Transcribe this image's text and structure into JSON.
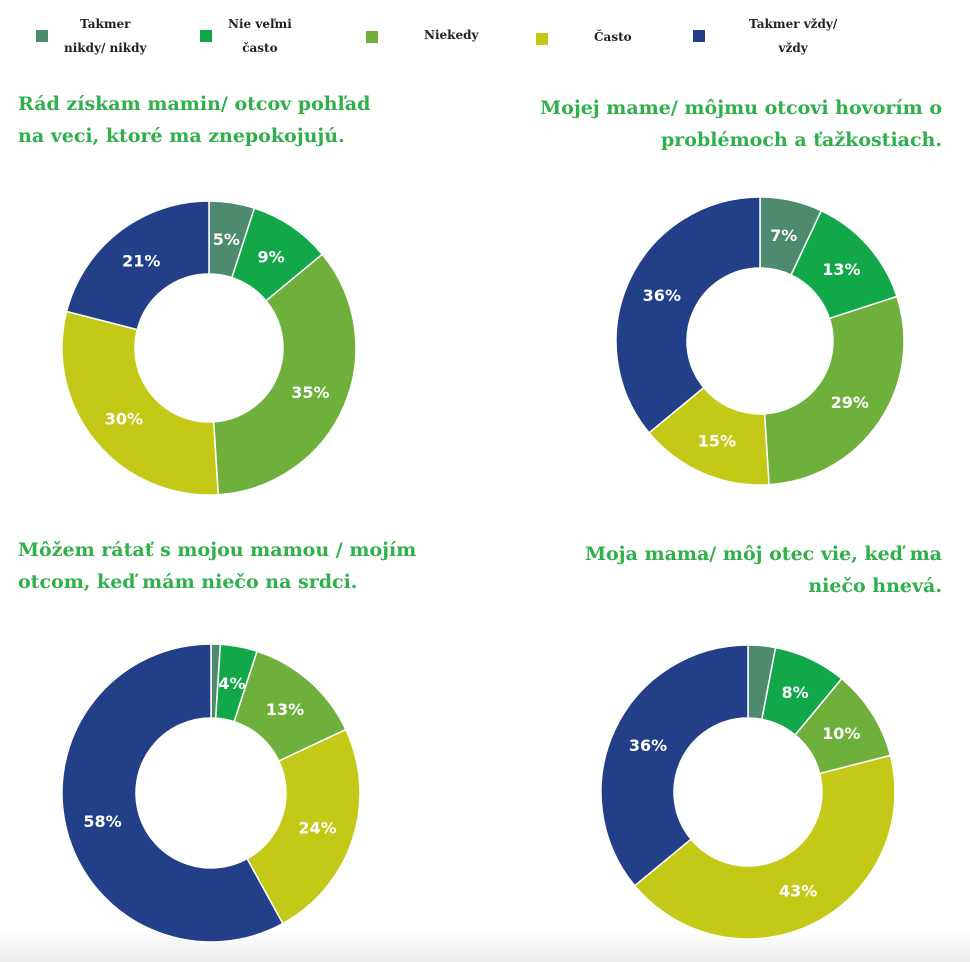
{
  "legend": [
    {
      "label": "Takmer\nnikdy/ nikdy",
      "color": "#4e8a6e"
    },
    {
      "label": "Nie veľmi\nčasto",
      "color": "#12a84a"
    },
    {
      "label": "Niekedy",
      "color": "#6fb03c"
    },
    {
      "label": "Často",
      "color": "#c4c816"
    },
    {
      "label": "Takmer vždy/\nvždy",
      "color": "#233f87"
    }
  ],
  "chart_data": [
    {
      "type": "pie",
      "title_lines": [
        "Rád získam mamin/ otcov pohľad",
        "na veci, ktoré ma znepokojujú."
      ],
      "categories": [
        "Takmer nikdy/ nikdy",
        "Nie veľmi často",
        "Niekedy",
        "Často",
        "Takmer vždy/ vždy"
      ],
      "values": [
        5,
        9,
        35,
        30,
        21
      ],
      "data_labels": [
        "5%",
        "9%",
        "35%",
        "30%",
        "21%"
      ]
    },
    {
      "type": "pie",
      "title_lines": [
        "Mojej mame/ môjmu otcovi hovorím o",
        "problémoch a ťažkostiach."
      ],
      "categories": [
        "Takmer nikdy/ nikdy",
        "Nie veľmi často",
        "Niekedy",
        "Často",
        "Takmer vždy/ vždy"
      ],
      "values": [
        7,
        13,
        29,
        15,
        36
      ],
      "data_labels": [
        "7%",
        "13%",
        "29%",
        "15%",
        "36%"
      ]
    },
    {
      "type": "pie",
      "title_lines": [
        "Môžem rátať s mojou mamou / mojím",
        "otcom, keď mám niečo na srdci."
      ],
      "categories": [
        "Takmer nikdy/ nikdy",
        "Nie veľmi často",
        "Niekedy",
        "Často",
        "Takmer vždy/ vždy"
      ],
      "values": [
        1,
        4,
        13,
        24,
        58
      ],
      "data_labels": [
        "",
        "4%",
        "13%",
        "24%",
        "58%"
      ]
    },
    {
      "type": "pie",
      "title_lines": [
        "Moja mama/ môj otec vie, keď ma",
        "niečo hnevá."
      ],
      "categories": [
        "Takmer nikdy/ nikdy",
        "Nie veľmi často",
        "Niekedy",
        "Často",
        "Takmer vždy/ vždy"
      ],
      "values": [
        3,
        8,
        10,
        43,
        36
      ],
      "data_labels": [
        "",
        "8%",
        "10%",
        "43%",
        "36%"
      ]
    }
  ]
}
